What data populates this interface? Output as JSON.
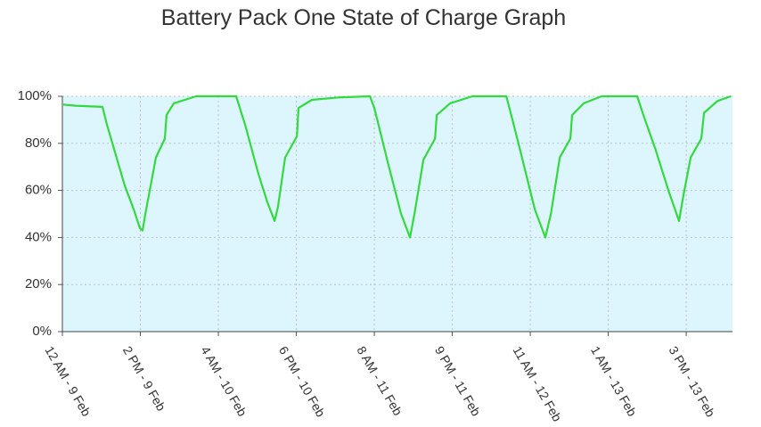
{
  "chart_data": {
    "type": "line",
    "title": "Battery Pack One State of Charge Graph",
    "x": [
      0,
      2.4,
      7.2,
      8,
      9.6,
      11.2,
      12.8,
      13.9,
      14.4,
      14.9,
      16.8,
      18.4,
      18.7,
      20,
      24,
      31.2,
      32.8,
      35.2,
      36.8,
      38.1,
      38.7,
      40,
      42.1,
      42.4,
      44.8,
      49.6,
      55.2,
      56,
      58.4,
      60.8,
      62.4,
      63.2,
      64.8,
      66.9,
      67.2,
      69.6,
      73.6,
      79.7,
      80.8,
      82.4,
      84.8,
      86.7,
      87.7,
      89.3,
      91.2,
      91.5,
      93.6,
      96.8,
      103.2,
      104.3,
      106.4,
      108.8,
      110.7,
      111.5,
      112.8,
      114.7,
      115.2,
      117.6,
      120
    ],
    "series": [
      {
        "name": "State of Charge",
        "color": "#33d93f",
        "values": [
          96.5,
          96,
          95.5,
          88,
          75,
          62,
          52,
          44,
          43,
          50,
          74,
          82,
          92,
          97,
          100,
          100,
          88,
          67,
          55,
          47,
          53,
          74,
          83,
          95,
          98.5,
          99.5,
          100,
          95,
          72,
          50,
          40,
          50,
          73,
          82,
          92,
          97,
          100,
          100,
          90,
          75,
          52,
          40,
          50,
          74,
          82,
          92,
          97,
          100,
          100,
          92,
          78,
          60,
          47,
          58,
          74,
          82,
          93,
          98,
          100
        ]
      }
    ],
    "xlim": [
      0,
      120.3
    ],
    "xticks": [
      {
        "value": 0,
        "label": "12 AM - 9 Feb"
      },
      {
        "value": 14,
        "label": "2 PM - 9 Feb"
      },
      {
        "value": 28,
        "label": "4 AM - 10 Feb"
      },
      {
        "value": 42,
        "label": "6 PM - 10 Feb"
      },
      {
        "value": 56,
        "label": "8 AM - 11 Feb"
      },
      {
        "value": 70,
        "label": "9 PM - 11 Feb"
      },
      {
        "value": 84,
        "label": "11 AM - 12 Feb"
      },
      {
        "value": 98,
        "label": "1 AM - 13 Feb"
      },
      {
        "value": 112,
        "label": "3 PM - 13 Feb"
      }
    ],
    "ylim": [
      0,
      100
    ],
    "yticks": [
      {
        "value": 0,
        "label": "0%"
      },
      {
        "value": 20,
        "label": "20%"
      },
      {
        "value": 40,
        "label": "40%"
      },
      {
        "value": 60,
        "label": "60%"
      },
      {
        "value": 80,
        "label": "80%"
      },
      {
        "value": 100,
        "label": "100%"
      }
    ],
    "grid": true,
    "background": "#ddf5fd"
  }
}
